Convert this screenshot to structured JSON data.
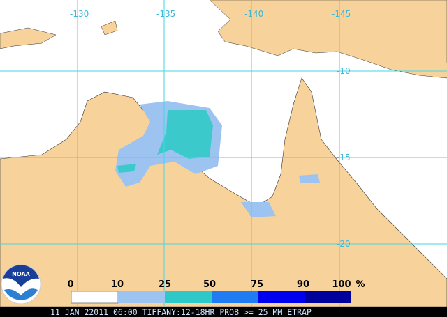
{
  "map": {
    "longitude_labels": [
      "-130",
      "-135",
      "-140",
      "-145"
    ],
    "latitude_labels": [
      "-10",
      "-15",
      "-20"
    ],
    "logo": "NOAA"
  },
  "legend": {
    "labels": [
      "0",
      "10",
      "25",
      "50",
      "75",
      "90",
      "100"
    ],
    "unit": "%"
  },
  "footer": "11 JAN 22011 06:00 TIFFANY:12-18HR PROB >= 25 MM ETRAP"
}
